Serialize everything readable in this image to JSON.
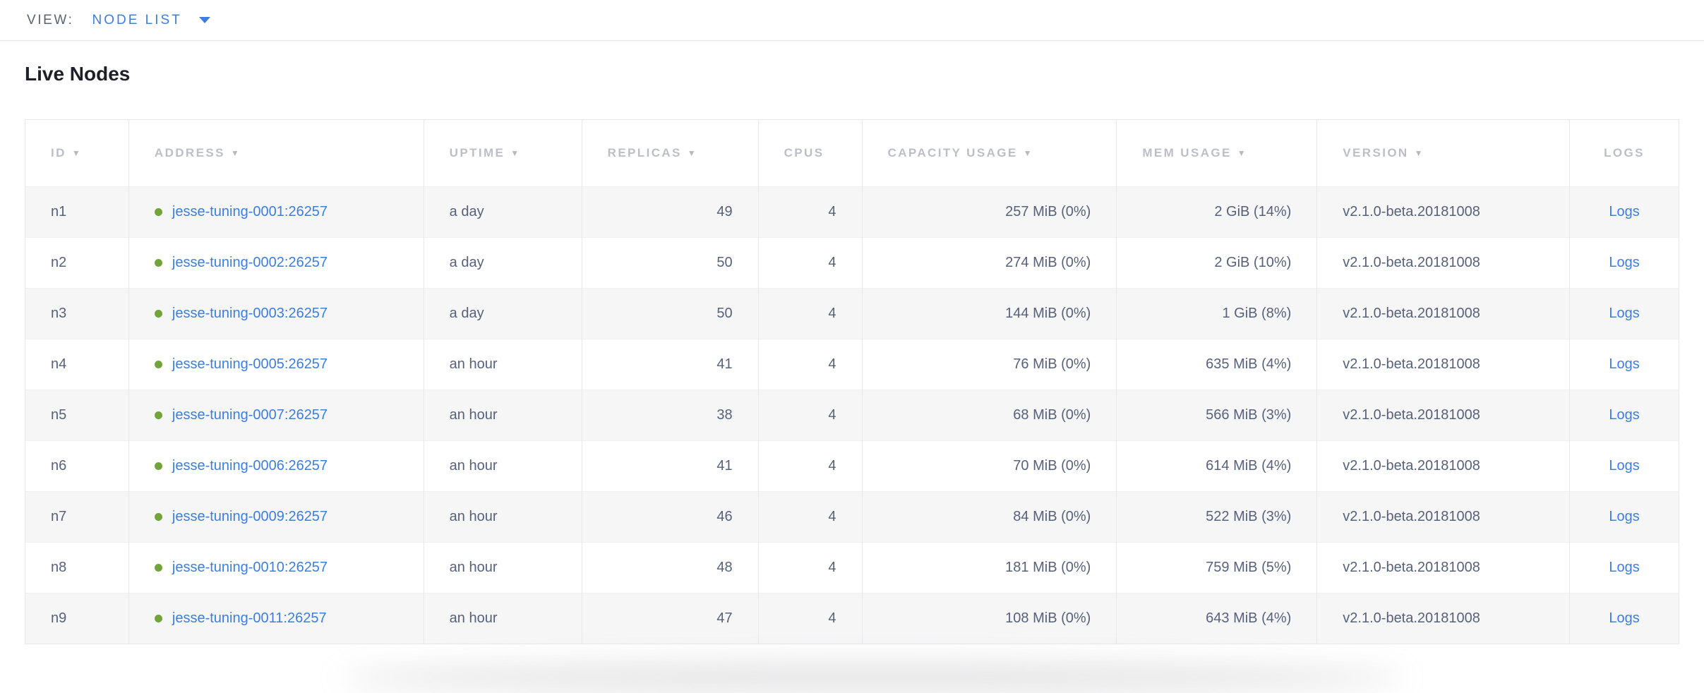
{
  "view_bar": {
    "label": "VIEW:",
    "selected": "NODE LIST"
  },
  "page": {
    "title": "Live Nodes"
  },
  "colors": {
    "link_blue": "#3e7dde",
    "healthy_green": "#72a43b",
    "header_gray": "#bcbfc6",
    "cell_slate": "#57617a",
    "stripe_gray": "#f6f6f7",
    "border_gray": "#e7e8ea"
  },
  "table": {
    "sort_icon": "▼",
    "columns": [
      {
        "key": "id",
        "label": "ID",
        "sortable": true,
        "align": "left",
        "width": "6.27%"
      },
      {
        "key": "address",
        "label": "ADDRESS",
        "sortable": true,
        "align": "left",
        "width": "17.83%"
      },
      {
        "key": "uptime",
        "label": "UPTIME",
        "sortable": true,
        "align": "left",
        "width": "9.56%"
      },
      {
        "key": "replicas",
        "label": "REPLICAS",
        "sortable": true,
        "align": "right",
        "width": "10.67%"
      },
      {
        "key": "cpus",
        "label": "CPUS",
        "sortable": false,
        "align": "right",
        "width": "6.27%"
      },
      {
        "key": "capacity",
        "label": "CAPACITY USAGE",
        "sortable": true,
        "align": "right",
        "width": "15.40%"
      },
      {
        "key": "mem",
        "label": "MEM USAGE",
        "sortable": true,
        "align": "right",
        "width": "12.12%"
      },
      {
        "key": "version",
        "label": "VERSION",
        "sortable": true,
        "align": "left",
        "width": "15.27%"
      },
      {
        "key": "logs",
        "label": "LOGS",
        "sortable": false,
        "align": "center",
        "width": "6.61%"
      }
    ],
    "rows": [
      {
        "id": "n1",
        "address": "jesse-tuning-0001:26257",
        "uptime": "a day",
        "replicas": "49",
        "cpus": "4",
        "capacity": "257 MiB (0%)",
        "mem": "2 GiB (14%)",
        "version": "v2.1.0-beta.20181008",
        "logs": "Logs"
      },
      {
        "id": "n2",
        "address": "jesse-tuning-0002:26257",
        "uptime": "a day",
        "replicas": "50",
        "cpus": "4",
        "capacity": "274 MiB (0%)",
        "mem": "2 GiB (10%)",
        "version": "v2.1.0-beta.20181008",
        "logs": "Logs"
      },
      {
        "id": "n3",
        "address": "jesse-tuning-0003:26257",
        "uptime": "a day",
        "replicas": "50",
        "cpus": "4",
        "capacity": "144 MiB (0%)",
        "mem": "1 GiB (8%)",
        "version": "v2.1.0-beta.20181008",
        "logs": "Logs"
      },
      {
        "id": "n4",
        "address": "jesse-tuning-0005:26257",
        "uptime": "an hour",
        "replicas": "41",
        "cpus": "4",
        "capacity": "76 MiB (0%)",
        "mem": "635 MiB (4%)",
        "version": "v2.1.0-beta.20181008",
        "logs": "Logs"
      },
      {
        "id": "n5",
        "address": "jesse-tuning-0007:26257",
        "uptime": "an hour",
        "replicas": "38",
        "cpus": "4",
        "capacity": "68 MiB (0%)",
        "mem": "566 MiB (3%)",
        "version": "v2.1.0-beta.20181008",
        "logs": "Logs"
      },
      {
        "id": "n6",
        "address": "jesse-tuning-0006:26257",
        "uptime": "an hour",
        "replicas": "41",
        "cpus": "4",
        "capacity": "70 MiB (0%)",
        "mem": "614 MiB (4%)",
        "version": "v2.1.0-beta.20181008",
        "logs": "Logs"
      },
      {
        "id": "n7",
        "address": "jesse-tuning-0009:26257",
        "uptime": "an hour",
        "replicas": "46",
        "cpus": "4",
        "capacity": "84 MiB (0%)",
        "mem": "522 MiB (3%)",
        "version": "v2.1.0-beta.20181008",
        "logs": "Logs"
      },
      {
        "id": "n8",
        "address": "jesse-tuning-0010:26257",
        "uptime": "an hour",
        "replicas": "48",
        "cpus": "4",
        "capacity": "181 MiB (0%)",
        "mem": "759 MiB (5%)",
        "version": "v2.1.0-beta.20181008",
        "logs": "Logs"
      },
      {
        "id": "n9",
        "address": "jesse-tuning-0011:26257",
        "uptime": "an hour",
        "replicas": "47",
        "cpus": "4",
        "capacity": "108 MiB (0%)",
        "mem": "643 MiB (4%)",
        "version": "v2.1.0-beta.20181008",
        "logs": "Logs"
      }
    ]
  }
}
